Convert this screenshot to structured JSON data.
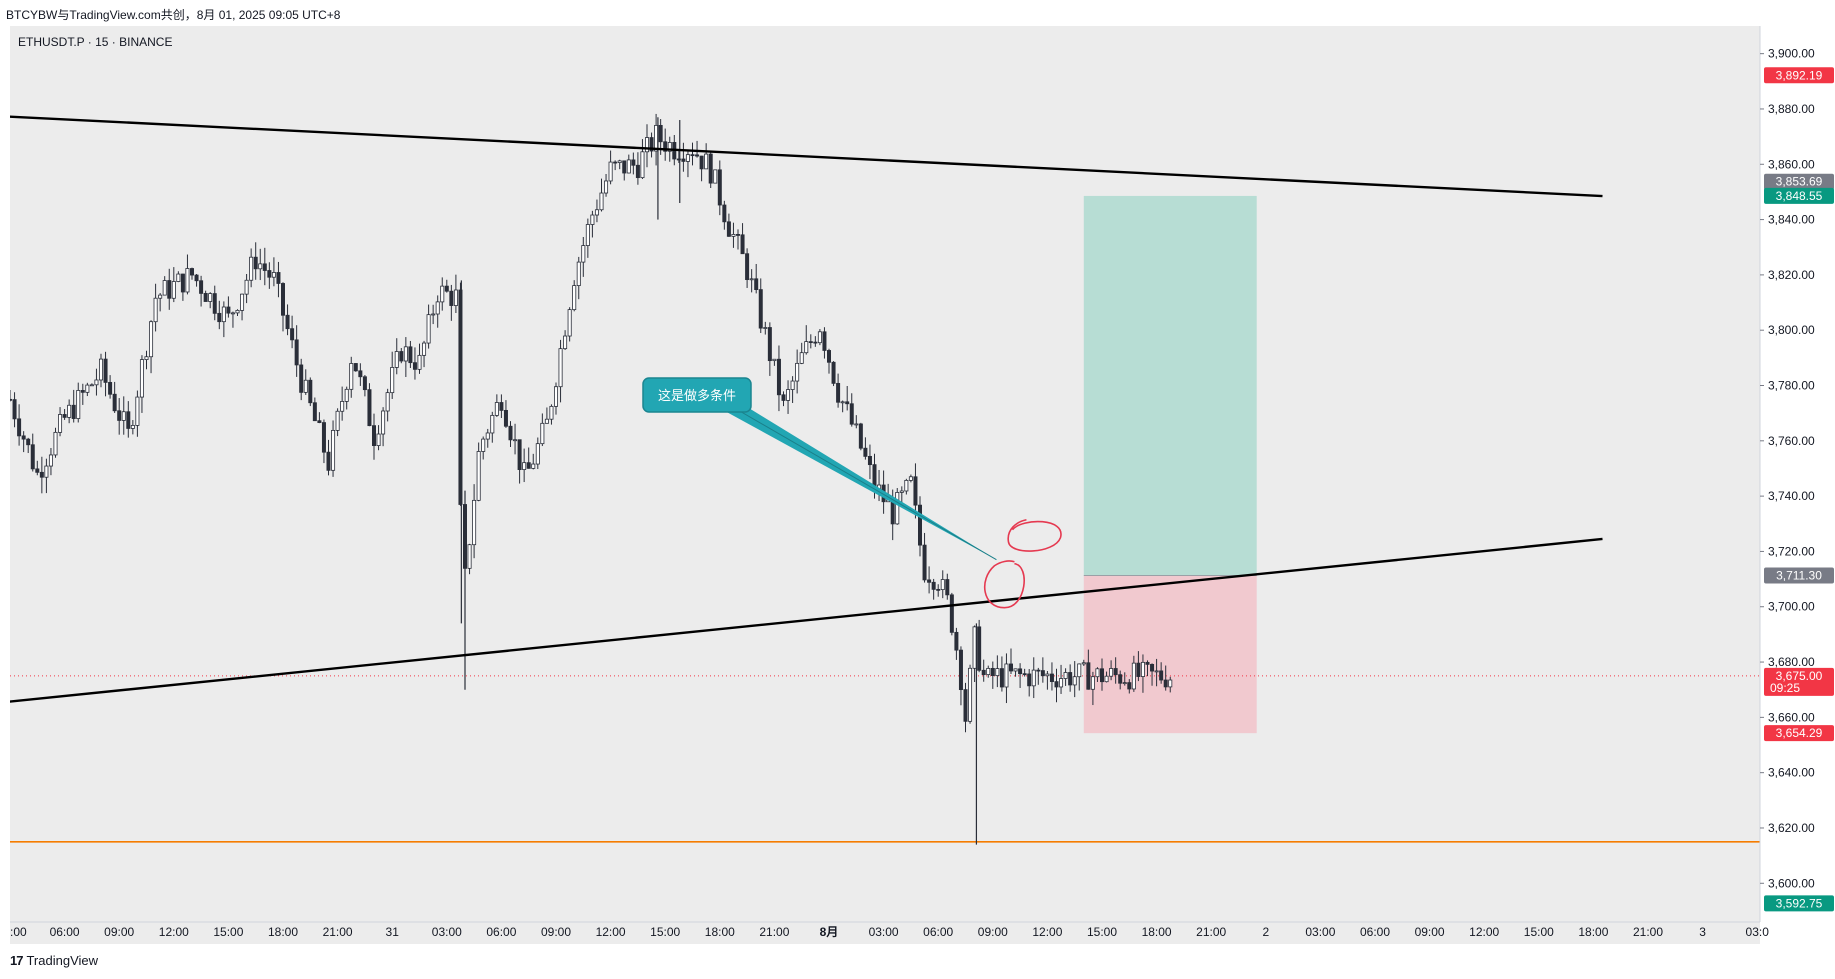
{
  "header": {
    "title": "BTCYBW与TradingView.com共创，8月 01, 2025 09:05 UTC+8",
    "symbol": "ETHUSDT.P · 15 · BINANCE"
  },
  "footer": {
    "brand": "TradingView",
    "logo": "17"
  },
  "colors": {
    "background": "#ececec",
    "candle_up": "#2a2e39",
    "candle_down": "#2a2e39",
    "support_line": "#f57c00",
    "trend_line": "#000000",
    "profit_zone": "#b7ddd4",
    "loss_zone": "#f1c9cf",
    "callout": "#22a6b3",
    "circle": "#e53950",
    "tag_red": "#f23645",
    "tag_green": "#089981",
    "tag_grey": "#787b86"
  },
  "chart_data": {
    "type": "candlestick",
    "ylim": [
      3586,
      3910
    ],
    "y_ticks": [
      "3,900.00",
      "3,880.00",
      "3,860.00",
      "3,840.00",
      "3,820.00",
      "3,800.00",
      "3,780.00",
      "3,760.00",
      "3,740.00",
      "3,720.00",
      "3,700.00",
      "3,680.00",
      "3,660.00",
      "3,640.00",
      "3,620.00",
      "3,600.00"
    ],
    "x_ticks": [
      ":00",
      "06:00",
      "09:00",
      "12:00",
      "15:00",
      "18:00",
      "21:00",
      "31",
      "03:00",
      "06:00",
      "09:00",
      "12:00",
      "15:00",
      "18:00",
      "21:00",
      "8月",
      "03:00",
      "06:00",
      "09:00",
      "12:00",
      "15:00",
      "18:00",
      "21:00",
      "2",
      "03:00",
      "06:00",
      "09:00",
      "12:00",
      "15:00",
      "18:00",
      "21:00",
      "3",
      "03:0"
    ],
    "x_ticks_bold": [
      "8月"
    ],
    "candle_x_range_hours": [
      0,
      63.9
    ],
    "price_path": [
      {
        "t": 0.0,
        "p": 3775
      },
      {
        "t": 1.5,
        "p": 3748
      },
      {
        "t": 3.0,
        "p": 3768
      },
      {
        "t": 5.0,
        "p": 3785
      },
      {
        "t": 6.5,
        "p": 3762
      },
      {
        "t": 8.0,
        "p": 3812
      },
      {
        "t": 10.0,
        "p": 3820
      },
      {
        "t": 12.0,
        "p": 3804
      },
      {
        "t": 13.5,
        "p": 3826
      },
      {
        "t": 14.5,
        "p": 3818
      },
      {
        "t": 16.0,
        "p": 3782
      },
      {
        "t": 17.5,
        "p": 3752
      },
      {
        "t": 18.8,
        "p": 3792
      },
      {
        "t": 20.0,
        "p": 3762
      },
      {
        "t": 21.5,
        "p": 3793
      },
      {
        "t": 22.5,
        "p": 3788
      },
      {
        "t": 23.5,
        "p": 3814
      },
      {
        "t": 24.5,
        "p": 3812
      },
      {
        "t": 24.7,
        "p": 3738
      },
      {
        "t": 25.0,
        "p": 3710
      },
      {
        "t": 25.8,
        "p": 3758
      },
      {
        "t": 27.0,
        "p": 3776
      },
      {
        "t": 28.3,
        "p": 3746
      },
      {
        "t": 29.5,
        "p": 3766
      },
      {
        "t": 31.0,
        "p": 3820
      },
      {
        "t": 32.0,
        "p": 3842
      },
      {
        "t": 33.0,
        "p": 3858
      },
      {
        "t": 34.5,
        "p": 3860
      },
      {
        "t": 35.5,
        "p": 3870
      },
      {
        "t": 36.5,
        "p": 3866
      },
      {
        "t": 37.5,
        "p": 3866
      },
      {
        "t": 38.5,
        "p": 3858
      },
      {
        "t": 39.5,
        "p": 3838
      },
      {
        "t": 40.5,
        "p": 3822
      },
      {
        "t": 41.5,
        "p": 3798
      },
      {
        "t": 42.5,
        "p": 3772
      },
      {
        "t": 43.5,
        "p": 3790
      },
      {
        "t": 44.5,
        "p": 3802
      },
      {
        "t": 45.5,
        "p": 3778
      },
      {
        "t": 46.5,
        "p": 3762
      },
      {
        "t": 47.5,
        "p": 3744
      },
      {
        "t": 48.5,
        "p": 3734
      },
      {
        "t": 49.5,
        "p": 3744
      },
      {
        "t": 50.2,
        "p": 3714
      },
      {
        "t": 51.0,
        "p": 3710
      },
      {
        "t": 51.6,
        "p": 3700
      },
      {
        "t": 52.2,
        "p": 3678
      },
      {
        "t": 52.5,
        "p": 3660
      },
      {
        "t": 53.0,
        "p": 3688
      },
      {
        "t": 53.6,
        "p": 3672
      },
      {
        "t": 53.9,
        "p": 3675
      }
    ],
    "wicks": [
      {
        "t": 24.8,
        "low": 3694,
        "high": 3818
      },
      {
        "t": 25.0,
        "low": 3670,
        "high": 3742
      },
      {
        "t": 53.1,
        "low": 3614,
        "high": 3694
      },
      {
        "t": 35.6,
        "low": 3840,
        "high": 3877
      },
      {
        "t": 36.8,
        "low": 3846,
        "high": 3876
      }
    ],
    "trend_lines": [
      {
        "name": "upper",
        "from": {
          "t": -8.5,
          "p": 3880
        },
        "to": {
          "t": 87.5,
          "p": 3848.5
        }
      },
      {
        "name": "lower",
        "from": {
          "t": -8.5,
          "p": 3660
        },
        "to": {
          "t": 87.5,
          "p": 3724.5
        }
      }
    ],
    "support_level": 3615,
    "last_price_level": 3675.0,
    "position": {
      "type": "long",
      "t_start": 59.0,
      "t_end": 68.5,
      "entry": 3711.3,
      "target": 3848.55,
      "stop": 3654.29
    },
    "price_tags": [
      {
        "label": "3,892.19",
        "price": 3892.19,
        "color": "#f23645"
      },
      {
        "label": "3,853.69",
        "price": 3853.69,
        "color": "#787b86"
      },
      {
        "label": "3,848.55",
        "price": 3848.55,
        "color": "#089981"
      },
      {
        "label": "3,711.30",
        "price": 3711.3,
        "color": "#787b86"
      },
      {
        "label": "3,675.00",
        "sublabel": "09:25",
        "price": 3675.0,
        "color": "#f23645"
      },
      {
        "label": "3,654.29",
        "price": 3654.29,
        "color": "#f23645"
      },
      {
        "label": "3,592.75",
        "price": 3592.75,
        "color": "#089981"
      }
    ],
    "annotations": [
      {
        "type": "callout",
        "text": "这是做多条件",
        "target": {
          "t": 54.2,
          "p": 3717
        }
      }
    ]
  }
}
